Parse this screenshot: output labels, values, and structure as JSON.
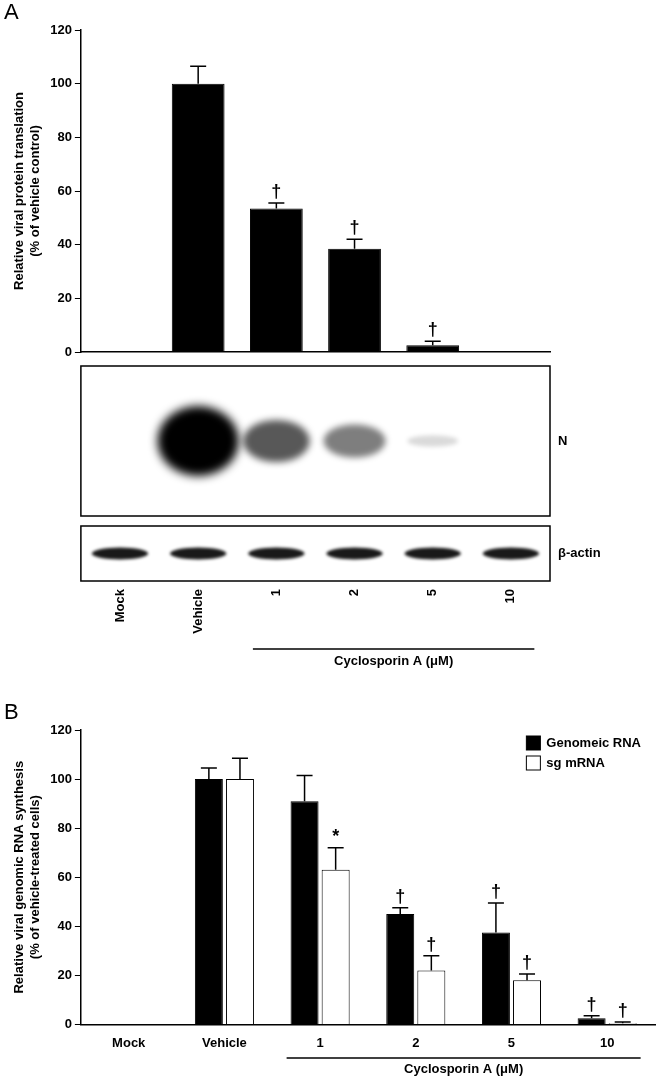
{
  "chart_data": [
    {
      "type": "bar",
      "title": "A",
      "categories": [
        "Mock",
        "Vehicle",
        "1",
        "2",
        "5",
        "10"
      ],
      "x_label": "Cyclosporin A (μM)",
      "ylabel": [
        "Relative viral protein translation",
        "(% of vehicle control)"
      ],
      "values": [
        0,
        100,
        53.5,
        38.5,
        2.5,
        0
      ],
      "errors": [
        null,
        6.5,
        2,
        3.5,
        1.5,
        null
      ],
      "annotations": [
        null,
        null,
        "†",
        "†",
        "†",
        null
      ],
      "color": "#000000",
      "blot_labels": [
        "N",
        "β-actin"
      ],
      "ylim": [
        0,
        120
      ],
      "yticks": [
        0,
        20,
        40,
        60,
        80,
        100,
        120
      ],
      "grid": false
    },
    {
      "type": "bar",
      "title": "B",
      "categories": [
        "Mock",
        "Vehicle",
        "1",
        "2",
        "5",
        "10"
      ],
      "x_label": "Cyclosporin A (μM)",
      "ylabel": [
        "Relative viral genomic RNA synthesis",
        "(% of vehicle-treated cells)"
      ],
      "series": [
        {
          "name": "Genomeic RNA",
          "color": "#000000",
          "values": [
            0,
            100,
            91,
            45,
            37.5,
            2.5
          ],
          "errors": [
            null,
            4.5,
            10.5,
            2.5,
            12,
            1
          ],
          "annotations": [
            null,
            null,
            null,
            "†",
            "†",
            "†"
          ]
        },
        {
          "name": "sg mRNA",
          "color": "#ffffff",
          "values": [
            0,
            100,
            63,
            22,
            18,
            0.5
          ],
          "errors": [
            null,
            8.5,
            9,
            6,
            2.5,
            0.5
          ],
          "annotations": [
            null,
            null,
            "*",
            "†",
            "†",
            "†"
          ]
        }
      ],
      "legend": "upper right",
      "ylim": [
        0,
        120
      ],
      "yticks": [
        0,
        20,
        40,
        60,
        80,
        100,
        120
      ],
      "grid": false
    }
  ]
}
